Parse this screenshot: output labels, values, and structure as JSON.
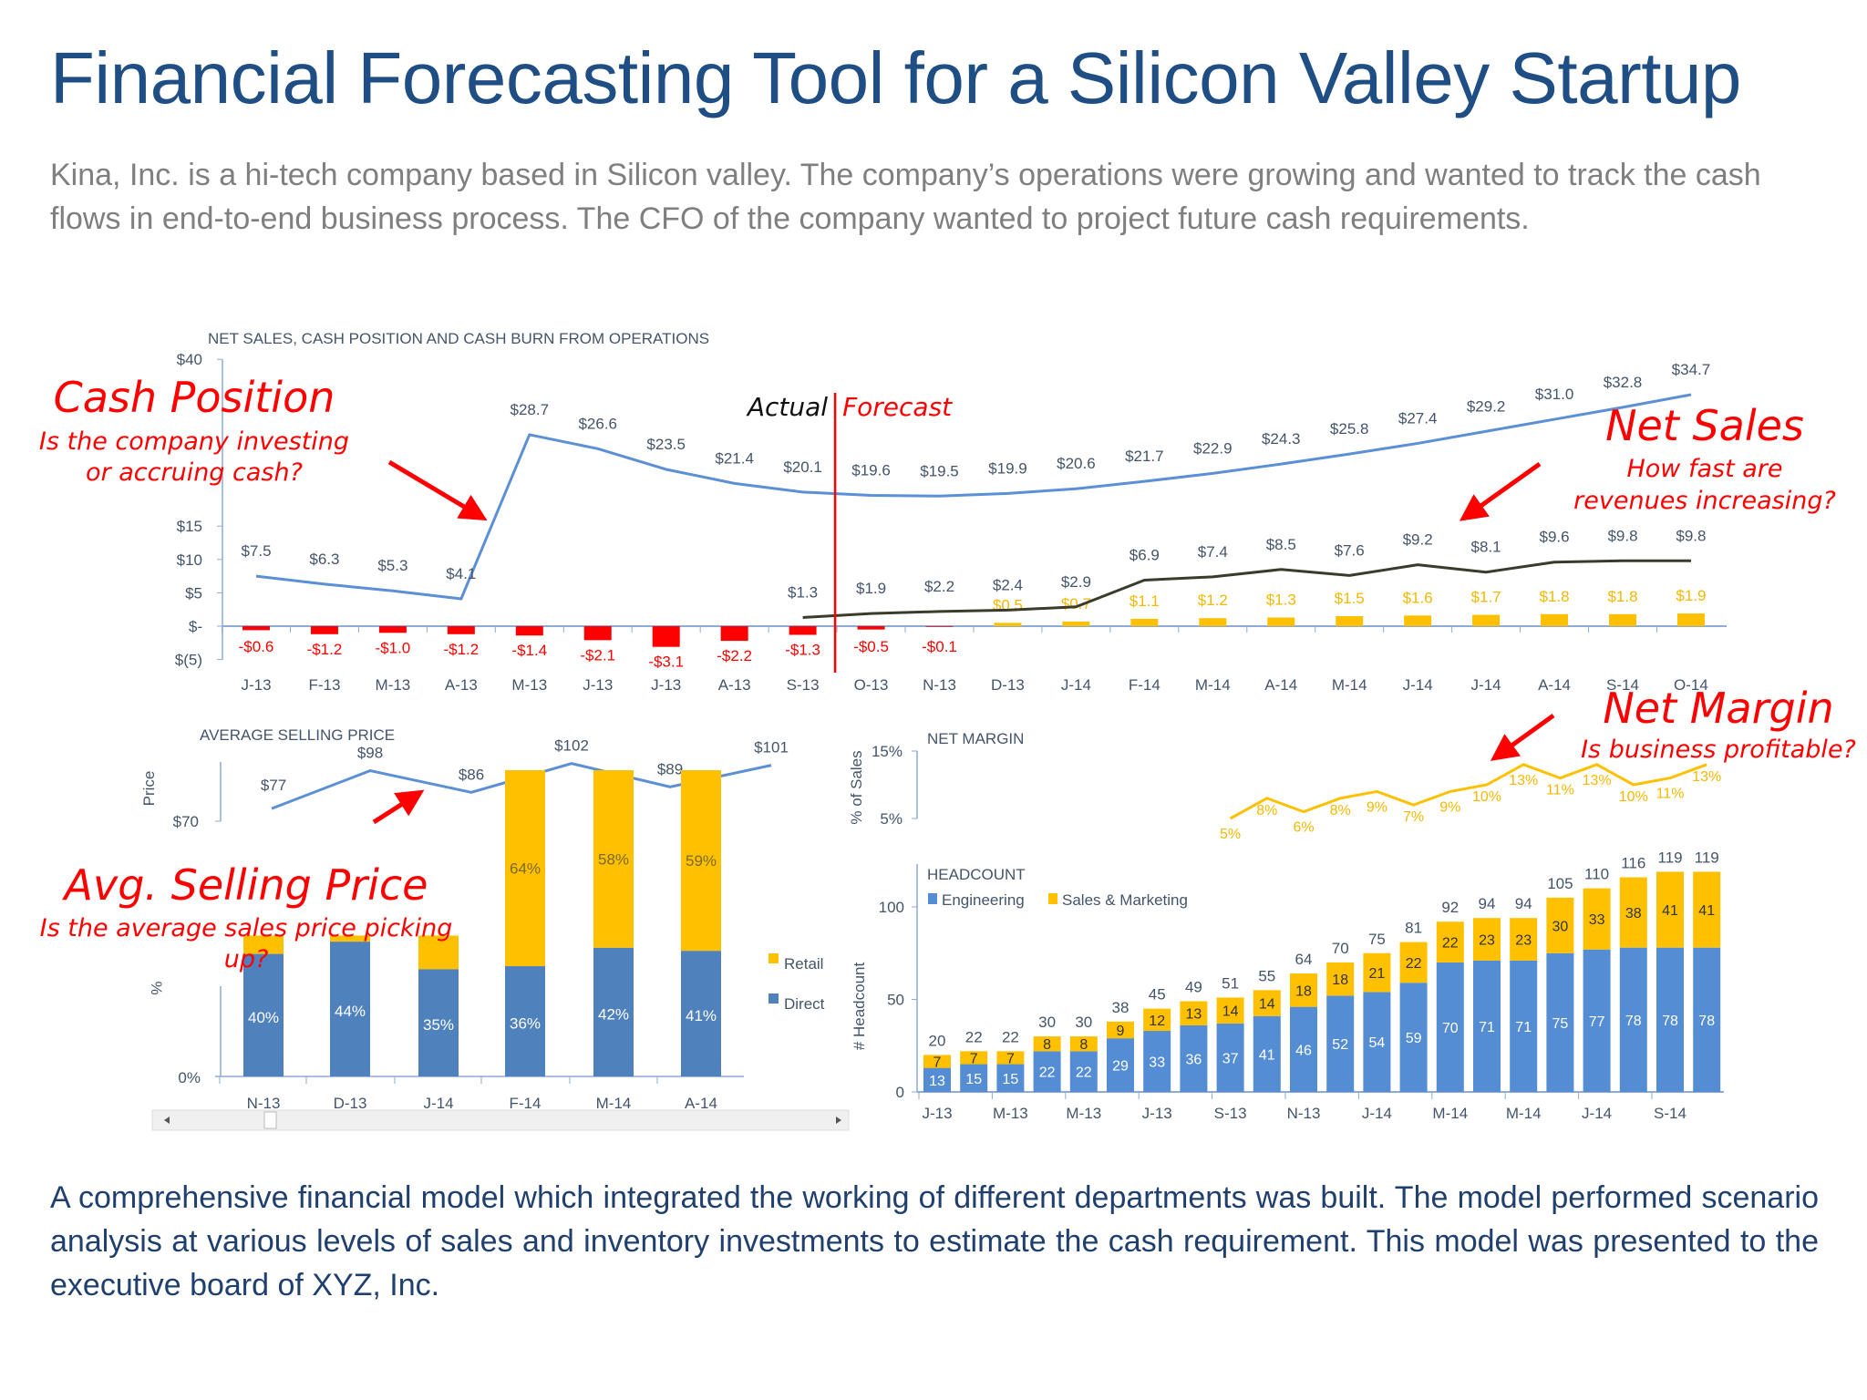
{
  "header": {
    "title": "Financial Forecasting Tool for a Silicon Valley Startup",
    "intro": "Kina, Inc. is a hi-tech company based in Silicon valley. The company’s operations were growing and wanted to track the cash flows in end-to-end business process. The CFO of the company wanted to project future cash requirements."
  },
  "footer": {
    "summary": "A comprehensive financial model which integrated the working of different departments was built. The model performed scenario analysis at various levels of sales and inventory investments to estimate the cash requirement. This model was presented to the executive board of XYZ, Inc."
  },
  "annotations": {
    "cash_position": {
      "title": "Cash Position",
      "lines": [
        "Is the company investing",
        "or accruing cash?"
      ]
    },
    "net_sales": {
      "title": "Net Sales",
      "lines": [
        "How fast are",
        "revenues increasing?"
      ]
    },
    "net_margin": {
      "title": "Net Margin",
      "lines": [
        "Is business profitable?"
      ]
    },
    "avg_price": {
      "title": "Avg. Selling Price",
      "lines": [
        "Is the average sales price picking",
        "up?"
      ]
    },
    "actual": "Actual",
    "forecast": "Forecast"
  },
  "colors": {
    "cash": "#5b8fd6",
    "sales": "#3b3b2b",
    "burn": "#ff0000",
    "positive": "#ffc000",
    "direct": "#4f81bd",
    "retail": "#ffc000",
    "engineering": "#548dd4",
    "sales_marketing": "#ffc000",
    "annotation": "#ff0000",
    "axis": "#44546a"
  },
  "chart_data": [
    {
      "id": "main",
      "type": "line",
      "title": "NET SALES, CASH POSITION AND CASH BURN FROM OPERATIONS",
      "categories": [
        "J-13",
        "F-13",
        "M-13",
        "A-13",
        "M-13",
        "J-13",
        "J-13",
        "A-13",
        "S-13",
        "O-13",
        "N-13",
        "D-13",
        "J-14",
        "F-14",
        "M-14",
        "A-14",
        "M-14",
        "J-14",
        "J-14",
        "A-14",
        "S-14",
        "O-14"
      ],
      "yticks": [
        "$40",
        "$15",
        "$10",
        "$5",
        "$-",
        "$(5)"
      ],
      "ytick_values": [
        40,
        15,
        10,
        5,
        0,
        -5
      ],
      "ylim": [
        -5,
        40
      ],
      "forecast_start": "O-13",
      "series": [
        {
          "key": "cash",
          "type": "line",
          "values": [
            7.5,
            6.3,
            5.3,
            4.1,
            28.7,
            26.6,
            23.5,
            21.4,
            20.1,
            19.6,
            19.5,
            19.9,
            20.6,
            21.7,
            22.9,
            24.3,
            25.8,
            27.4,
            29.2,
            31.0,
            32.8,
            34.7
          ],
          "labels": [
            "$7.5",
            "$6.3",
            "$5.3",
            "$4.1",
            "$28.7",
            "$26.6",
            "$23.5",
            "$21.4",
            "$20.1",
            "$19.6",
            "$19.5",
            "$19.9",
            "$20.6",
            "$21.7",
            "$22.9",
            "$24.3",
            "$25.8",
            "$27.4",
            "$29.2",
            "$31.0",
            "$32.8",
            "$34.7"
          ]
        },
        {
          "key": "sales",
          "type": "line",
          "values": [
            null,
            null,
            null,
            null,
            null,
            null,
            null,
            null,
            1.3,
            1.9,
            2.2,
            2.4,
            2.9,
            6.9,
            7.4,
            8.5,
            7.6,
            9.2,
            8.1,
            9.6,
            9.8,
            9.8
          ],
          "labels": [
            null,
            null,
            null,
            null,
            null,
            null,
            null,
            null,
            "$1.3",
            "$1.9",
            "$2.2",
            "$2.4",
            "$2.9",
            "$6.9",
            "$7.4",
            "$8.5",
            "$7.6",
            "$9.2",
            "$8.1",
            "$9.6",
            "$9.8",
            "$9.8"
          ]
        },
        {
          "key": "burn",
          "type": "bar",
          "values": [
            -0.6,
            -1.2,
            -1.0,
            -1.2,
            -1.4,
            -2.1,
            -3.1,
            -2.2,
            -1.3,
            -0.5,
            -0.1,
            0.5,
            0.7,
            1.1,
            1.2,
            1.3,
            1.5,
            1.6,
            1.7,
            1.8,
            1.8,
            1.9
          ],
          "labels": [
            "-$0.6",
            "-$1.2",
            "-$1.0",
            "-$1.2",
            "-$1.4",
            "-$2.1",
            "-$3.1",
            "-$2.2",
            "-$1.3",
            "-$0.5",
            "-$0.1",
            "$0.5",
            "$0.7",
            "$1.1",
            "$1.2",
            "$1.3",
            "$1.5",
            "$1.6",
            "$1.7",
            "$1.8",
            "$1.8",
            "$1.9"
          ]
        }
      ]
    },
    {
      "id": "asp",
      "type": "line",
      "title": "AVERAGE SELLING PRICE",
      "ylabel": "Price",
      "yticks": [
        "$70"
      ],
      "ylim": [
        70,
        105
      ],
      "values": [
        77,
        98,
        86,
        102,
        89,
        101
      ],
      "labels": [
        "$77",
        "$98",
        "$86",
        "$102",
        "$89",
        "$101"
      ]
    },
    {
      "id": "mix",
      "type": "bar",
      "stacked": true,
      "ylabel": "%",
      "yticks": [
        "0%"
      ],
      "categories": [
        "N-13",
        "D-13",
        "J-14",
        "F-14",
        "M-14",
        "A-14"
      ],
      "series": [
        {
          "name": "Direct",
          "values": [
            40,
            44,
            35,
            36,
            42,
            41
          ],
          "labels": [
            "40%",
            "44%",
            "35%",
            "36%",
            "42%",
            "41%"
          ]
        },
        {
          "name": "Retail",
          "values": [
            60,
            56,
            65,
            64,
            58,
            59
          ],
          "labels": [
            null,
            null,
            null,
            "64%",
            "58%",
            "59%"
          ]
        }
      ],
      "legend": "right"
    },
    {
      "id": "margin",
      "type": "line",
      "title": "NET MARGIN",
      "ylabel": "% of Sales",
      "yticks": [
        "15%",
        "5%"
      ],
      "ylim": [
        5,
        15
      ],
      "categories": [
        "S-13",
        "O-13",
        "N-13",
        "D-13",
        "J-14",
        "F-14",
        "M-14",
        "A-14",
        "M-14",
        "J-14",
        "J-14",
        "A-14",
        "S-14",
        "O-14"
      ],
      "values": [
        5,
        8,
        6,
        8,
        9,
        7,
        9,
        10,
        13,
        11,
        13,
        10,
        11,
        13
      ],
      "labels": [
        "5%",
        "8%",
        "6%",
        "8%",
        "9%",
        "7%",
        "9%",
        "10%",
        "13%",
        "11%",
        "13%",
        "10%",
        "11%",
        "13%"
      ]
    },
    {
      "id": "headcount",
      "type": "bar",
      "stacked": true,
      "title": "HEADCOUNT",
      "ylabel": "# Headcount",
      "yticks": [
        "100",
        "50",
        "0"
      ],
      "ytick_values": [
        100,
        50,
        0
      ],
      "xticks": [
        "J-13",
        "M-13",
        "M-13",
        "J-13",
        "S-13",
        "N-13",
        "J-14",
        "M-14",
        "M-14",
        "J-14",
        "S-14"
      ],
      "series": [
        {
          "name": "Engineering",
          "values": [
            13,
            15,
            15,
            22,
            22,
            29,
            33,
            36,
            37,
            41,
            46,
            52,
            54,
            59,
            70,
            71,
            71,
            75,
            77,
            78,
            78,
            78
          ]
        },
        {
          "name": "Sales & Marketing",
          "values": [
            7,
            7,
            7,
            8,
            8,
            9,
            12,
            13,
            14,
            14,
            18,
            18,
            21,
            22,
            22,
            23,
            23,
            30,
            33,
            38,
            41,
            41
          ]
        }
      ],
      "totals": [
        20,
        22,
        22,
        30,
        30,
        38,
        45,
        49,
        51,
        55,
        64,
        70,
        75,
        81,
        92,
        94,
        94,
        105,
        110,
        116,
        119,
        119
      ],
      "legend": "top-left"
    }
  ]
}
